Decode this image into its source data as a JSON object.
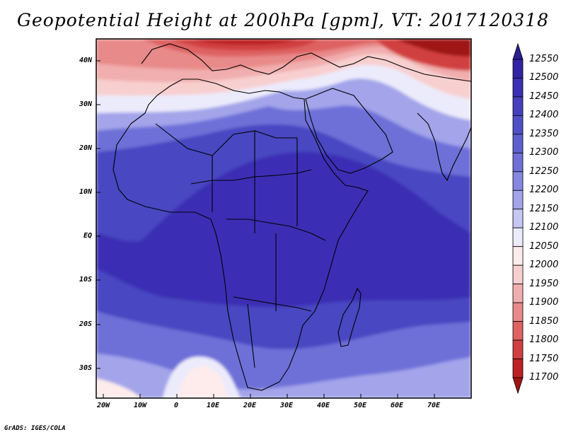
{
  "title": "Geopotential Height at 200hPa [gpm], VT: 2017120318",
  "footer": "GrADS: IGES/COLA",
  "map": {
    "lat_labels": [
      "40N",
      "30N",
      "20N",
      "10N",
      "EQ",
      "10S",
      "20S",
      "30S"
    ],
    "lon_labels": [
      "20W",
      "10W",
      "0",
      "10E",
      "20E",
      "30E",
      "40E",
      "50E",
      "60E",
      "70E"
    ]
  },
  "colorbar": {
    "levels": [
      "12550",
      "12500",
      "12450",
      "12400",
      "12350",
      "12300",
      "12250",
      "12200",
      "12150",
      "12100",
      "12050",
      "12000",
      "11950",
      "11900",
      "11850",
      "11800",
      "11750",
      "11700"
    ],
    "colors": [
      "#2a1e8f",
      "#3223a4",
      "#3b2fb4",
      "#4640bd",
      "#5050c6",
      "#5e5fcf",
      "#6e70d8",
      "#8587e0",
      "#a3a4ea",
      "#c6c7f3",
      "#ecebfb",
      "#fdeceb",
      "#f8cfcf",
      "#f1aeae",
      "#e98a8a",
      "#de6262",
      "#d14040",
      "#bb2323",
      "#9e1414"
    ]
  }
}
